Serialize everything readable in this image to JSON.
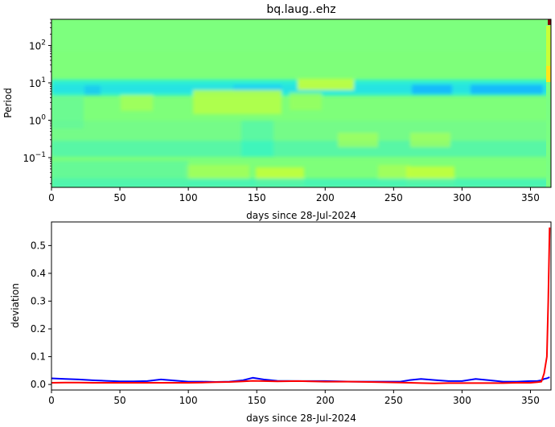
{
  "chart_data": [
    {
      "type": "heatmap",
      "title": "bq.laug..ehz",
      "xlabel": "days since 28-Jul-2024",
      "ylabel": "Period",
      "xlim": [
        0,
        365
      ],
      "ylim": [
        0.016,
        500
      ],
      "yscale": "log",
      "x_ticks": [
        0,
        50,
        100,
        150,
        200,
        250,
        300,
        350
      ],
      "y_ticks": [
        {
          "value": 100,
          "base": "10",
          "exp": "2"
        },
        {
          "value": 10,
          "base": "10",
          "exp": "1"
        },
        {
          "value": 1,
          "base": "10",
          "exp": "0"
        },
        {
          "value": 0.1,
          "base": "10",
          "exp": "−1"
        }
      ],
      "colormap": "jet",
      "colors": {
        "background": "#7eff7a",
        "band_low": "#21f5d3",
        "band_high": "#c8ff37",
        "hot_spot": "#800000"
      }
    },
    {
      "type": "line",
      "xlabel": "days since 28-Jul-2024",
      "ylabel": "deviation",
      "xlim": [
        0,
        365
      ],
      "ylim": [
        -0.02,
        0.585
      ],
      "x_ticks": [
        0,
        50,
        100,
        150,
        200,
        250,
        300,
        350
      ],
      "y_ticks": [
        0.0,
        0.1,
        0.2,
        0.3,
        0.4,
        0.5
      ],
      "y_tick_labels": [
        "0.0",
        "0.1",
        "0.2",
        "0.3",
        "0.4",
        "0.5"
      ],
      "series": [
        {
          "color": "#0000ff",
          "x": [
            0,
            10,
            20,
            30,
            40,
            50,
            60,
            70,
            80,
            90,
            100,
            110,
            120,
            130,
            140,
            147,
            155,
            165,
            180,
            200,
            220,
            240,
            255,
            262,
            270,
            280,
            290,
            300,
            310,
            320,
            330,
            340,
            350,
            355,
            358,
            360,
            362,
            364
          ],
          "y": [
            0.022,
            0.02,
            0.018,
            0.015,
            0.013,
            0.011,
            0.011,
            0.012,
            0.018,
            0.014,
            0.01,
            0.01,
            0.009,
            0.01,
            0.015,
            0.024,
            0.018,
            0.013,
            0.012,
            0.012,
            0.01,
            0.01,
            0.01,
            0.016,
            0.02,
            0.016,
            0.012,
            0.012,
            0.02,
            0.015,
            0.01,
            0.01,
            0.012,
            0.012,
            0.015,
            0.02,
            0.022,
            0.026
          ]
        },
        {
          "color": "#ff0000",
          "x": [
            0,
            10,
            20,
            30,
            40,
            50,
            60,
            70,
            80,
            90,
            100,
            110,
            120,
            130,
            140,
            147,
            155,
            165,
            180,
            200,
            220,
            240,
            255,
            262,
            270,
            280,
            290,
            300,
            310,
            320,
            330,
            340,
            350,
            355,
            358,
            360,
            362,
            363,
            364
          ],
          "y": [
            0.006,
            0.007,
            0.007,
            0.006,
            0.006,
            0.006,
            0.006,
            0.006,
            0.006,
            0.006,
            0.006,
            0.007,
            0.008,
            0.009,
            0.011,
            0.013,
            0.012,
            0.011,
            0.012,
            0.01,
            0.01,
            0.008,
            0.007,
            0.006,
            0.005,
            0.004,
            0.005,
            0.005,
            0.005,
            0.005,
            0.005,
            0.006,
            0.006,
            0.008,
            0.01,
            0.04,
            0.1,
            0.3,
            0.565
          ]
        }
      ]
    }
  ]
}
